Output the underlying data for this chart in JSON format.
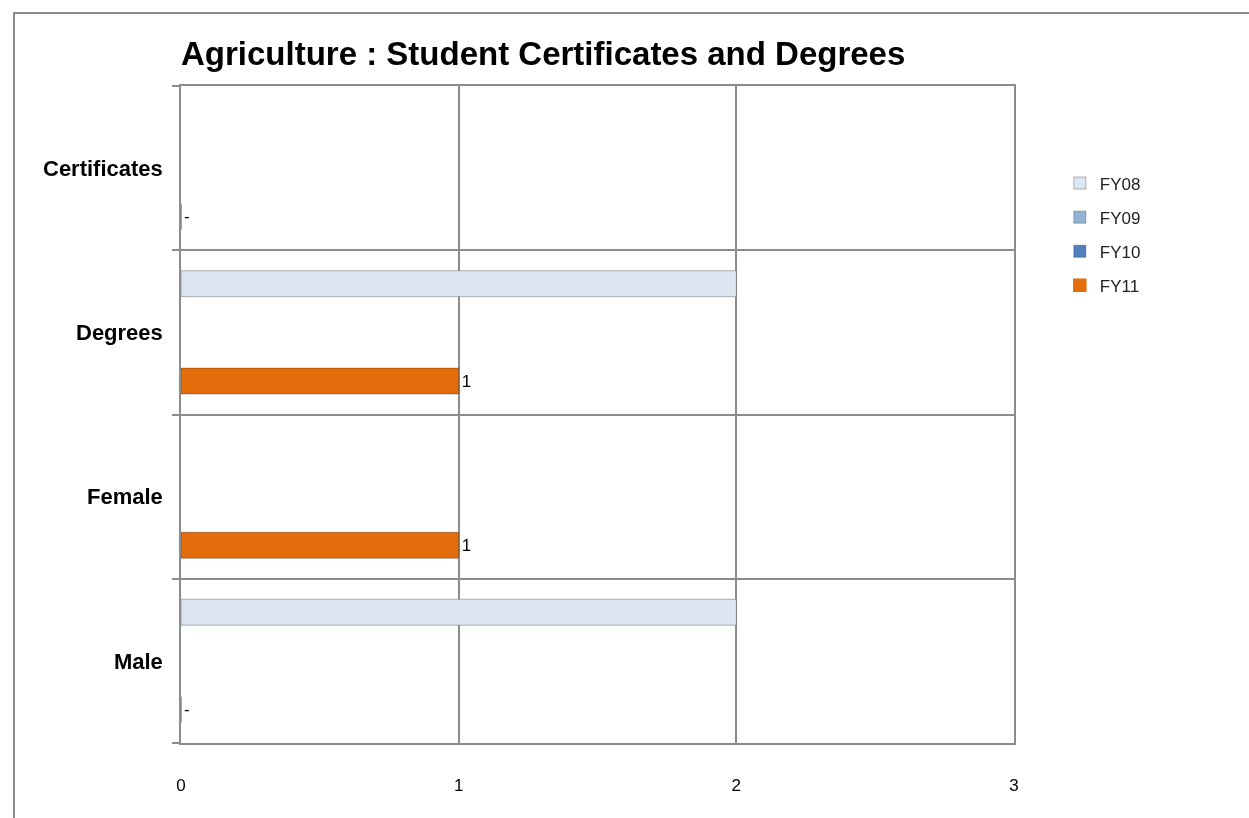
{
  "chart_data": {
    "type": "bar",
    "orientation": "horizontal",
    "title": "Agriculture : Student Certificates and Degrees",
    "categories": [
      "Certificates",
      "Degrees",
      "Female",
      "Male"
    ],
    "series": [
      {
        "name": "FY08",
        "color": "#dce6f1",
        "values": [
          null,
          2,
          null,
          2
        ]
      },
      {
        "name": "FY09",
        "color": "#95b3d7",
        "values": [
          null,
          null,
          null,
          null
        ]
      },
      {
        "name": "FY10",
        "color": "#4f81bd",
        "values": [
          null,
          null,
          null,
          null
        ]
      },
      {
        "name": "FY11",
        "color": "#e46c0a",
        "values": [
          0,
          1,
          1,
          0
        ],
        "value_labels": [
          "-",
          "1",
          "1",
          "-"
        ]
      }
    ],
    "xlim": [
      0,
      3
    ],
    "xticks": [
      0,
      1,
      2,
      3
    ],
    "grid": true,
    "legend": "right"
  }
}
